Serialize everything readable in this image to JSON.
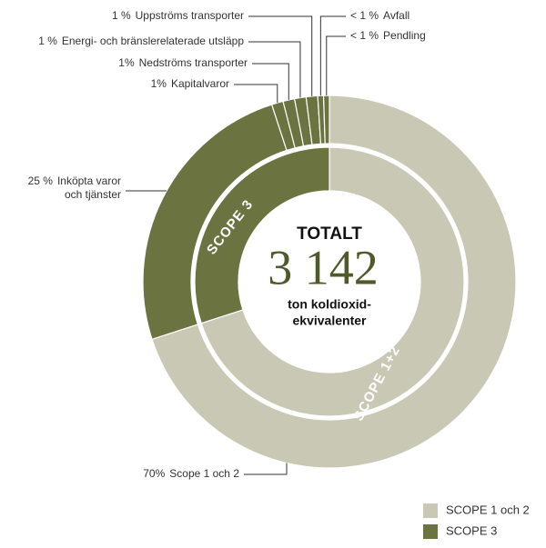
{
  "chart_data": {
    "type": "donut",
    "outer": {
      "categories": [
        "Scope 1 och 2",
        "Inköpta varor och tjänster",
        "Kapitalvaror",
        "Nedströms transporter",
        "Energi- och bränslerelaterade utsläpp",
        "Uppströms transporter",
        "Avfall",
        "Pendling"
      ],
      "values": [
        70,
        25,
        1,
        1,
        1,
        1,
        0.5,
        0.5
      ],
      "value_labels": [
        "70%",
        "25 %",
        "1%",
        "1%",
        "1 %",
        "1 %",
        "< 1 %",
        "< 1 %"
      ],
      "colors": [
        "#c9c8b4",
        "#6b7340",
        "#6b7340",
        "#6b7340",
        "#6b7340",
        "#6b7340",
        "#6b7340",
        "#6b7340"
      ]
    },
    "inner": {
      "categories": [
        "SCOPE 1+2",
        "SCOPE 3"
      ],
      "values": [
        70,
        30
      ],
      "colors": [
        "#c9c8b4",
        "#6b7340"
      ]
    },
    "center": {
      "title": "TOTALT",
      "total": "3 142",
      "unit": [
        "ton koldioxid-",
        "ekvivalenter"
      ]
    },
    "legend": [
      {
        "label": "SCOPE 1 och 2",
        "color": "#c9c8b4"
      },
      {
        "label": "SCOPE 3",
        "color": "#6b7340"
      }
    ]
  }
}
